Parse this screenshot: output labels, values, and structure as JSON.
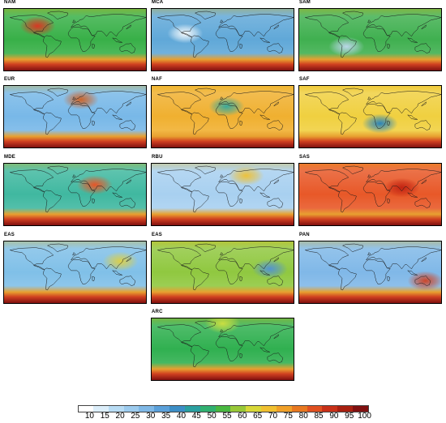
{
  "panels": [
    {
      "label": "NAM",
      "base": "#38b048",
      "hot": {
        "lon": -95,
        "lat": 40,
        "color": "#e03020"
      }
    },
    {
      "label": "MCA",
      "base": "#60a8d8",
      "hot": {
        "lon": -95,
        "lat": 18,
        "color": "#ffffff"
      }
    },
    {
      "label": "SAM",
      "base": "#40b050",
      "hot": {
        "lon": -60,
        "lat": -20,
        "color": "#c0d8f0"
      }
    },
    {
      "label": "EUR",
      "base": "#78b8e8",
      "hot": {
        "lon": 15,
        "lat": 50,
        "color": "#d06020"
      }
    },
    {
      "label": "NAF",
      "base": "#f0b030",
      "hot": {
        "lon": 10,
        "lat": 30,
        "color": "#30a8a0"
      }
    },
    {
      "label": "SAF",
      "base": "#f0d040",
      "hot": {
        "lon": 25,
        "lat": -20,
        "color": "#2080c0"
      }
    },
    {
      "label": "MDE",
      "base": "#40b8a0",
      "hot": {
        "lon": 50,
        "lat": 28,
        "color": "#f05020"
      }
    },
    {
      "label": "RBU",
      "base": "#a8d0f0",
      "hot": {
        "lon": 60,
        "lat": 55,
        "color": "#f0c030"
      }
    },
    {
      "label": "SAS",
      "base": "#e85828",
      "hot": {
        "lon": 80,
        "lat": 20,
        "color": "#c02010"
      }
    },
    {
      "label": "EAS",
      "base": "#80c0e8",
      "hot": {
        "lon": 115,
        "lat": 32,
        "color": "#e0d040"
      }
    },
    {
      "label": "EAS",
      "base": "#90c840",
      "hot": {
        "lon": 120,
        "lat": 10,
        "color": "#5090d8"
      }
    },
    {
      "label": "PAN",
      "base": "#80b8e8",
      "hot": {
        "lon": 140,
        "lat": -25,
        "color": "#d04020"
      }
    },
    {
      "label": "ARC",
      "base": "#30b050",
      "hot": {
        "lon": 0,
        "lat": 75,
        "color": "#d0e040"
      }
    }
  ],
  "colorbar": {
    "ticks": [
      "10",
      "15",
      "20",
      "25",
      "30",
      "35",
      "40",
      "45",
      "50",
      "55",
      "60",
      "65",
      "70",
      "75",
      "80",
      "85",
      "90",
      "95",
      "100"
    ],
    "colors": [
      "#ffffff",
      "#dceefa",
      "#b8dcf4",
      "#9ccbee",
      "#7fb8e6",
      "#5aa0da",
      "#3c8ec6",
      "#2aa0a0",
      "#30b070",
      "#48b840",
      "#98c838",
      "#d8d838",
      "#f0c030",
      "#f0a028",
      "#e87820",
      "#e05020",
      "#c83018",
      "#a82010",
      "#801010"
    ]
  }
}
